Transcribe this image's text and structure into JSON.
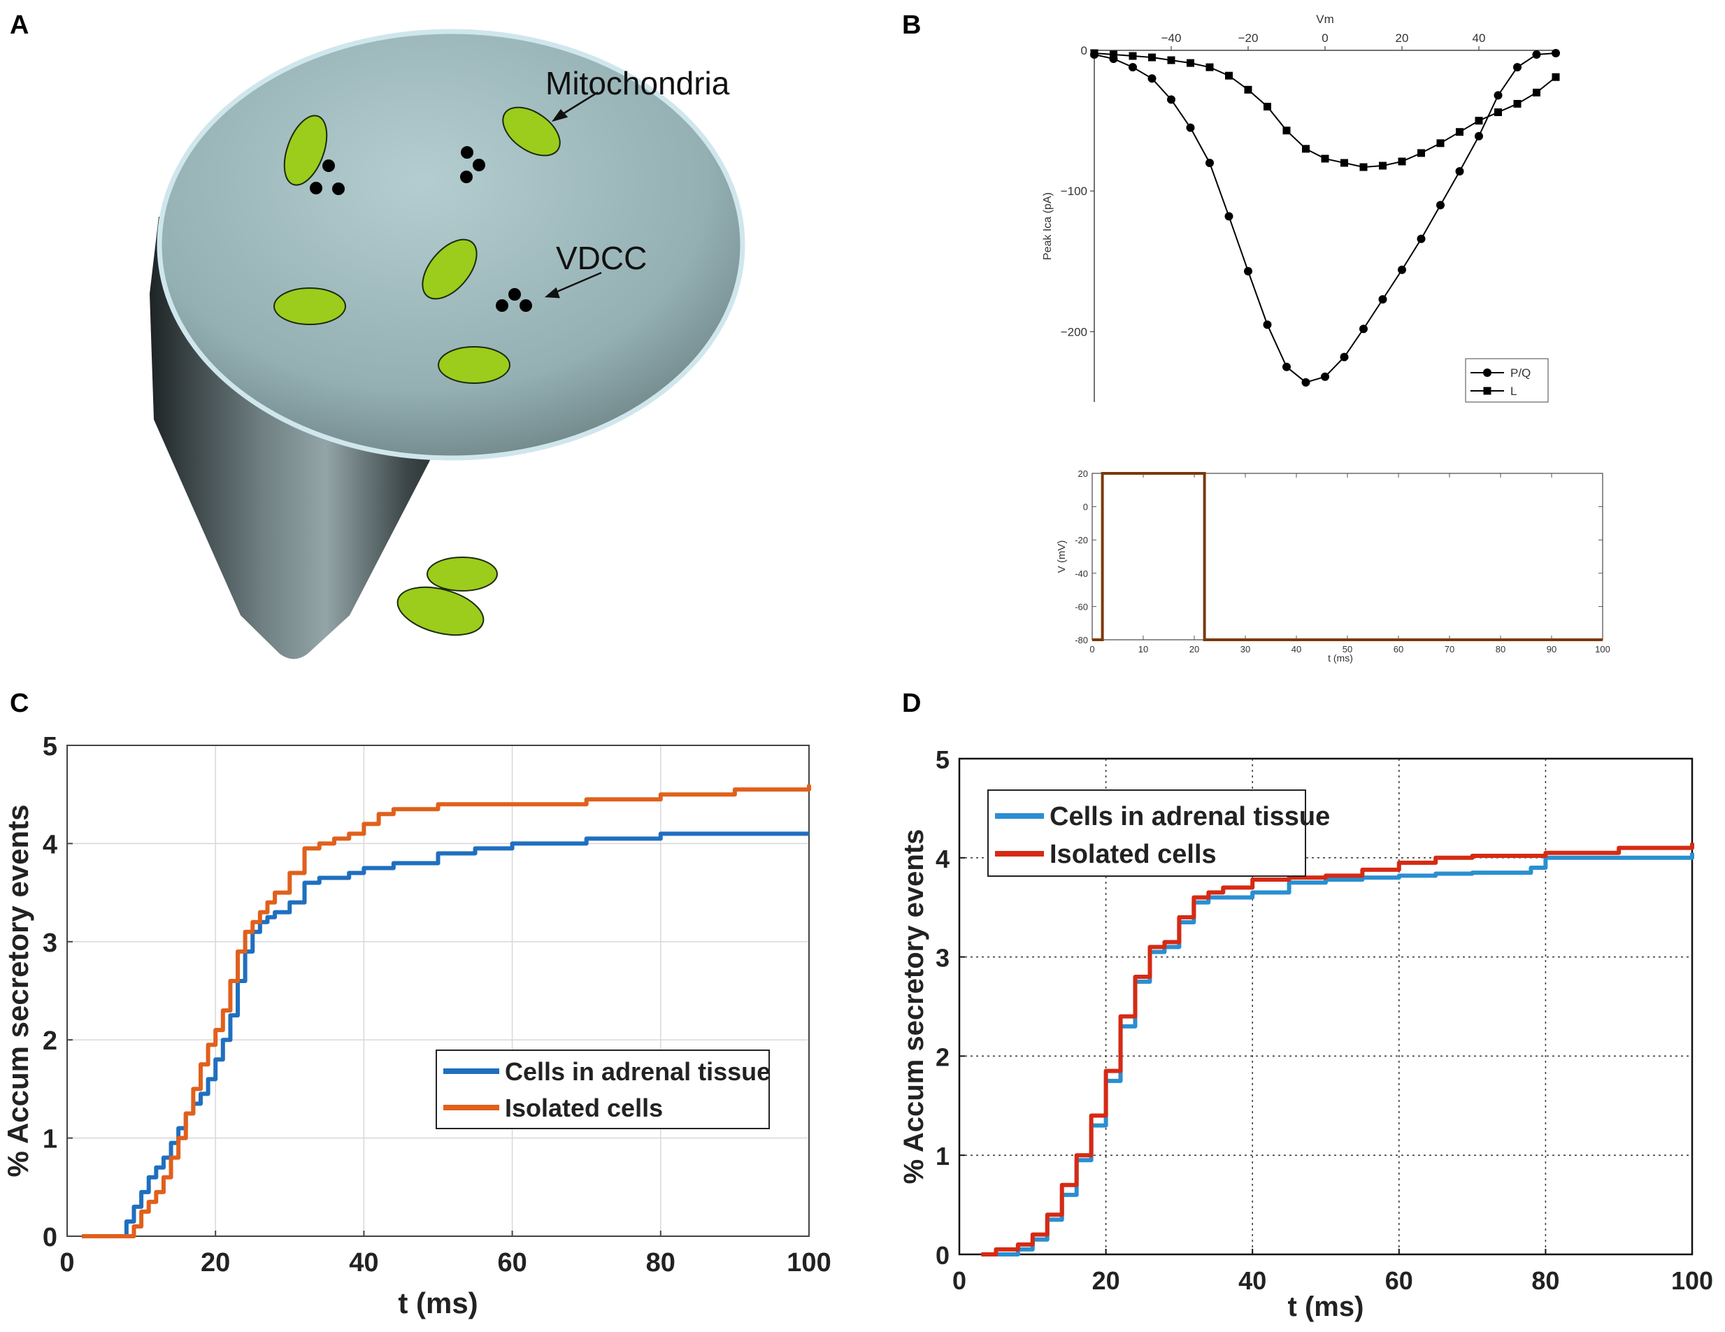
{
  "panels": {
    "A": {
      "letter": "A",
      "mito_label": "Mitochondria",
      "vdcc_label": "VDCC",
      "colors": {
        "mito_fill": "#9ccc1c",
        "cone_top": "#aac6c9",
        "cone_dark": "#2a3133",
        "rim": "#cfe6ec"
      }
    },
    "B": {
      "letter": "B"
    },
    "C": {
      "letter": "C"
    },
    "D": {
      "letter": "D"
    }
  },
  "chart_data": [
    {
      "id": "B_top",
      "type": "line",
      "title": "",
      "xlabel": "Vm",
      "ylabel": "Peak Ica (pA)",
      "xlim": [
        -60,
        60
      ],
      "ylim": [
        -250,
        0
      ],
      "xticks": [
        -40,
        -20,
        0,
        20,
        40
      ],
      "xtick_labels": [
        "−40",
        "−20",
        "0",
        "20",
        "40"
      ],
      "yticks": [
        0,
        -100,
        -200
      ],
      "ytick_labels": [
        "0",
        "−100",
        "−200"
      ],
      "legend_position": "bottom-right",
      "series": [
        {
          "name": "P/Q",
          "marker": "circle",
          "color": "#000000",
          "x": [
            -60,
            -55,
            -50,
            -45,
            -40,
            -35,
            -30,
            -25,
            -20,
            -15,
            -10,
            -5,
            0,
            5,
            10,
            15,
            20,
            25,
            30,
            35,
            40,
            45,
            50,
            55,
            60
          ],
          "y": [
            -3,
            -6,
            -12,
            -20,
            -35,
            -55,
            -80,
            -118,
            -157,
            -195,
            -225,
            -236,
            -232,
            -218,
            -198,
            -177,
            -156,
            -134,
            -110,
            -86,
            -61,
            -32,
            -12,
            -3,
            -2
          ]
        },
        {
          "name": "L",
          "marker": "square",
          "color": "#000000",
          "x": [
            -60,
            -55,
            -50,
            -45,
            -40,
            -35,
            -30,
            -25,
            -20,
            -15,
            -10,
            -5,
            0,
            5,
            10,
            15,
            20,
            25,
            30,
            35,
            40,
            45,
            50,
            55,
            60
          ],
          "y": [
            -2,
            -3,
            -4,
            -5,
            -7,
            -9,
            -12,
            -18,
            -28,
            -40,
            -57,
            -70,
            -77,
            -80,
            -83,
            -82,
            -79,
            -73,
            -66,
            -58,
            -50,
            -44,
            -38,
            -30,
            -19
          ]
        }
      ]
    },
    {
      "id": "B_bottom",
      "type": "line",
      "title": "",
      "xlabel": "t (ms)",
      "ylabel": "V (mV)",
      "xlim": [
        0,
        100
      ],
      "ylim": [
        -80,
        20
      ],
      "xticks": [
        0,
        10,
        20,
        30,
        40,
        50,
        60,
        70,
        80,
        90,
        100
      ],
      "yticks": [
        20,
        0,
        -20,
        -40,
        -60,
        -80
      ],
      "series": [
        {
          "name": "Voltage pulse",
          "color": "#7a3a0c",
          "x": [
            0,
            2,
            2,
            22,
            22,
            100
          ],
          "y": [
            -80,
            -80,
            20,
            20,
            -80,
            -80
          ]
        }
      ]
    },
    {
      "id": "C",
      "type": "line",
      "title": "",
      "xlabel": "t (ms)",
      "ylabel": "% Accum secretory events",
      "xlim": [
        0,
        100
      ],
      "ylim": [
        0,
        5
      ],
      "xticks": [
        0,
        20,
        40,
        60,
        80,
        100
      ],
      "yticks": [
        0,
        1,
        2,
        3,
        4,
        5
      ],
      "grid": true,
      "legend_position": "lower-right",
      "series": [
        {
          "name": "Cells in adrenal tissue",
          "color": "#1f6fbf",
          "x": [
            2,
            7,
            8,
            9,
            10,
            11,
            12,
            13,
            14,
            15,
            16,
            17,
            18,
            19,
            20,
            21,
            22,
            23,
            24,
            25,
            26,
            27,
            28,
            30,
            32,
            34,
            38,
            40,
            44,
            50,
            55,
            60,
            70,
            80,
            90,
            100
          ],
          "y": [
            0,
            0,
            0.15,
            0.3,
            0.45,
            0.6,
            0.7,
            0.8,
            0.95,
            1.1,
            1.25,
            1.35,
            1.45,
            1.6,
            1.8,
            2.0,
            2.25,
            2.6,
            2.9,
            3.1,
            3.2,
            3.25,
            3.3,
            3.4,
            3.6,
            3.65,
            3.7,
            3.75,
            3.8,
            3.9,
            3.95,
            4.0,
            4.05,
            4.1,
            4.1,
            4.1
          ]
        },
        {
          "name": "Isolated cells",
          "color": "#e0601c",
          "x": [
            2,
            8,
            9,
            10,
            11,
            12,
            13,
            14,
            15,
            16,
            17,
            18,
            19,
            20,
            21,
            22,
            23,
            24,
            25,
            26,
            27,
            28,
            30,
            32,
            34,
            36,
            38,
            40,
            42,
            44,
            50,
            60,
            70,
            80,
            90,
            100
          ],
          "y": [
            0,
            0,
            0.1,
            0.25,
            0.35,
            0.45,
            0.6,
            0.8,
            1.0,
            1.25,
            1.5,
            1.75,
            1.95,
            2.1,
            2.3,
            2.6,
            2.9,
            3.1,
            3.2,
            3.3,
            3.4,
            3.5,
            3.7,
            3.95,
            4.0,
            4.05,
            4.1,
            4.2,
            4.3,
            4.35,
            4.4,
            4.4,
            4.45,
            4.5,
            4.55,
            4.6
          ]
        }
      ]
    },
    {
      "id": "D",
      "type": "line",
      "title": "",
      "xlabel": "t (ms)",
      "ylabel": "% Accum secretory events",
      "xlim": [
        0,
        100
      ],
      "ylim": [
        0,
        5
      ],
      "xticks": [
        0,
        20,
        40,
        60,
        80,
        100
      ],
      "yticks": [
        0,
        1,
        2,
        3,
        4,
        5
      ],
      "grid": true,
      "legend_position": "top-left",
      "series": [
        {
          "name": "Cells in adrenal tissue",
          "color": "#2a8fd0",
          "x": [
            3,
            6,
            8,
            10,
            12,
            14,
            16,
            18,
            20,
            22,
            24,
            26,
            28,
            30,
            32,
            34,
            36,
            40,
            45,
            50,
            55,
            60,
            65,
            70,
            78,
            80,
            90,
            100
          ],
          "y": [
            0,
            0,
            0.05,
            0.15,
            0.35,
            0.6,
            0.95,
            1.3,
            1.75,
            2.3,
            2.75,
            3.05,
            3.1,
            3.35,
            3.55,
            3.6,
            3.6,
            3.65,
            3.75,
            3.78,
            3.8,
            3.82,
            3.84,
            3.85,
            3.9,
            4.0,
            4.0,
            4.05
          ]
        },
        {
          "name": "Isolated cells",
          "color": "#d62a14",
          "x": [
            3,
            5,
            8,
            10,
            12,
            14,
            16,
            18,
            20,
            22,
            24,
            26,
            28,
            30,
            32,
            34,
            36,
            40,
            45,
            50,
            55,
            60,
            65,
            70,
            80,
            90,
            100
          ],
          "y": [
            0,
            0.05,
            0.1,
            0.2,
            0.4,
            0.7,
            1.0,
            1.4,
            1.85,
            2.4,
            2.8,
            3.1,
            3.15,
            3.4,
            3.6,
            3.65,
            3.7,
            3.78,
            3.8,
            3.82,
            3.88,
            3.95,
            4.0,
            4.02,
            4.05,
            4.1,
            4.15
          ]
        }
      ]
    }
  ]
}
